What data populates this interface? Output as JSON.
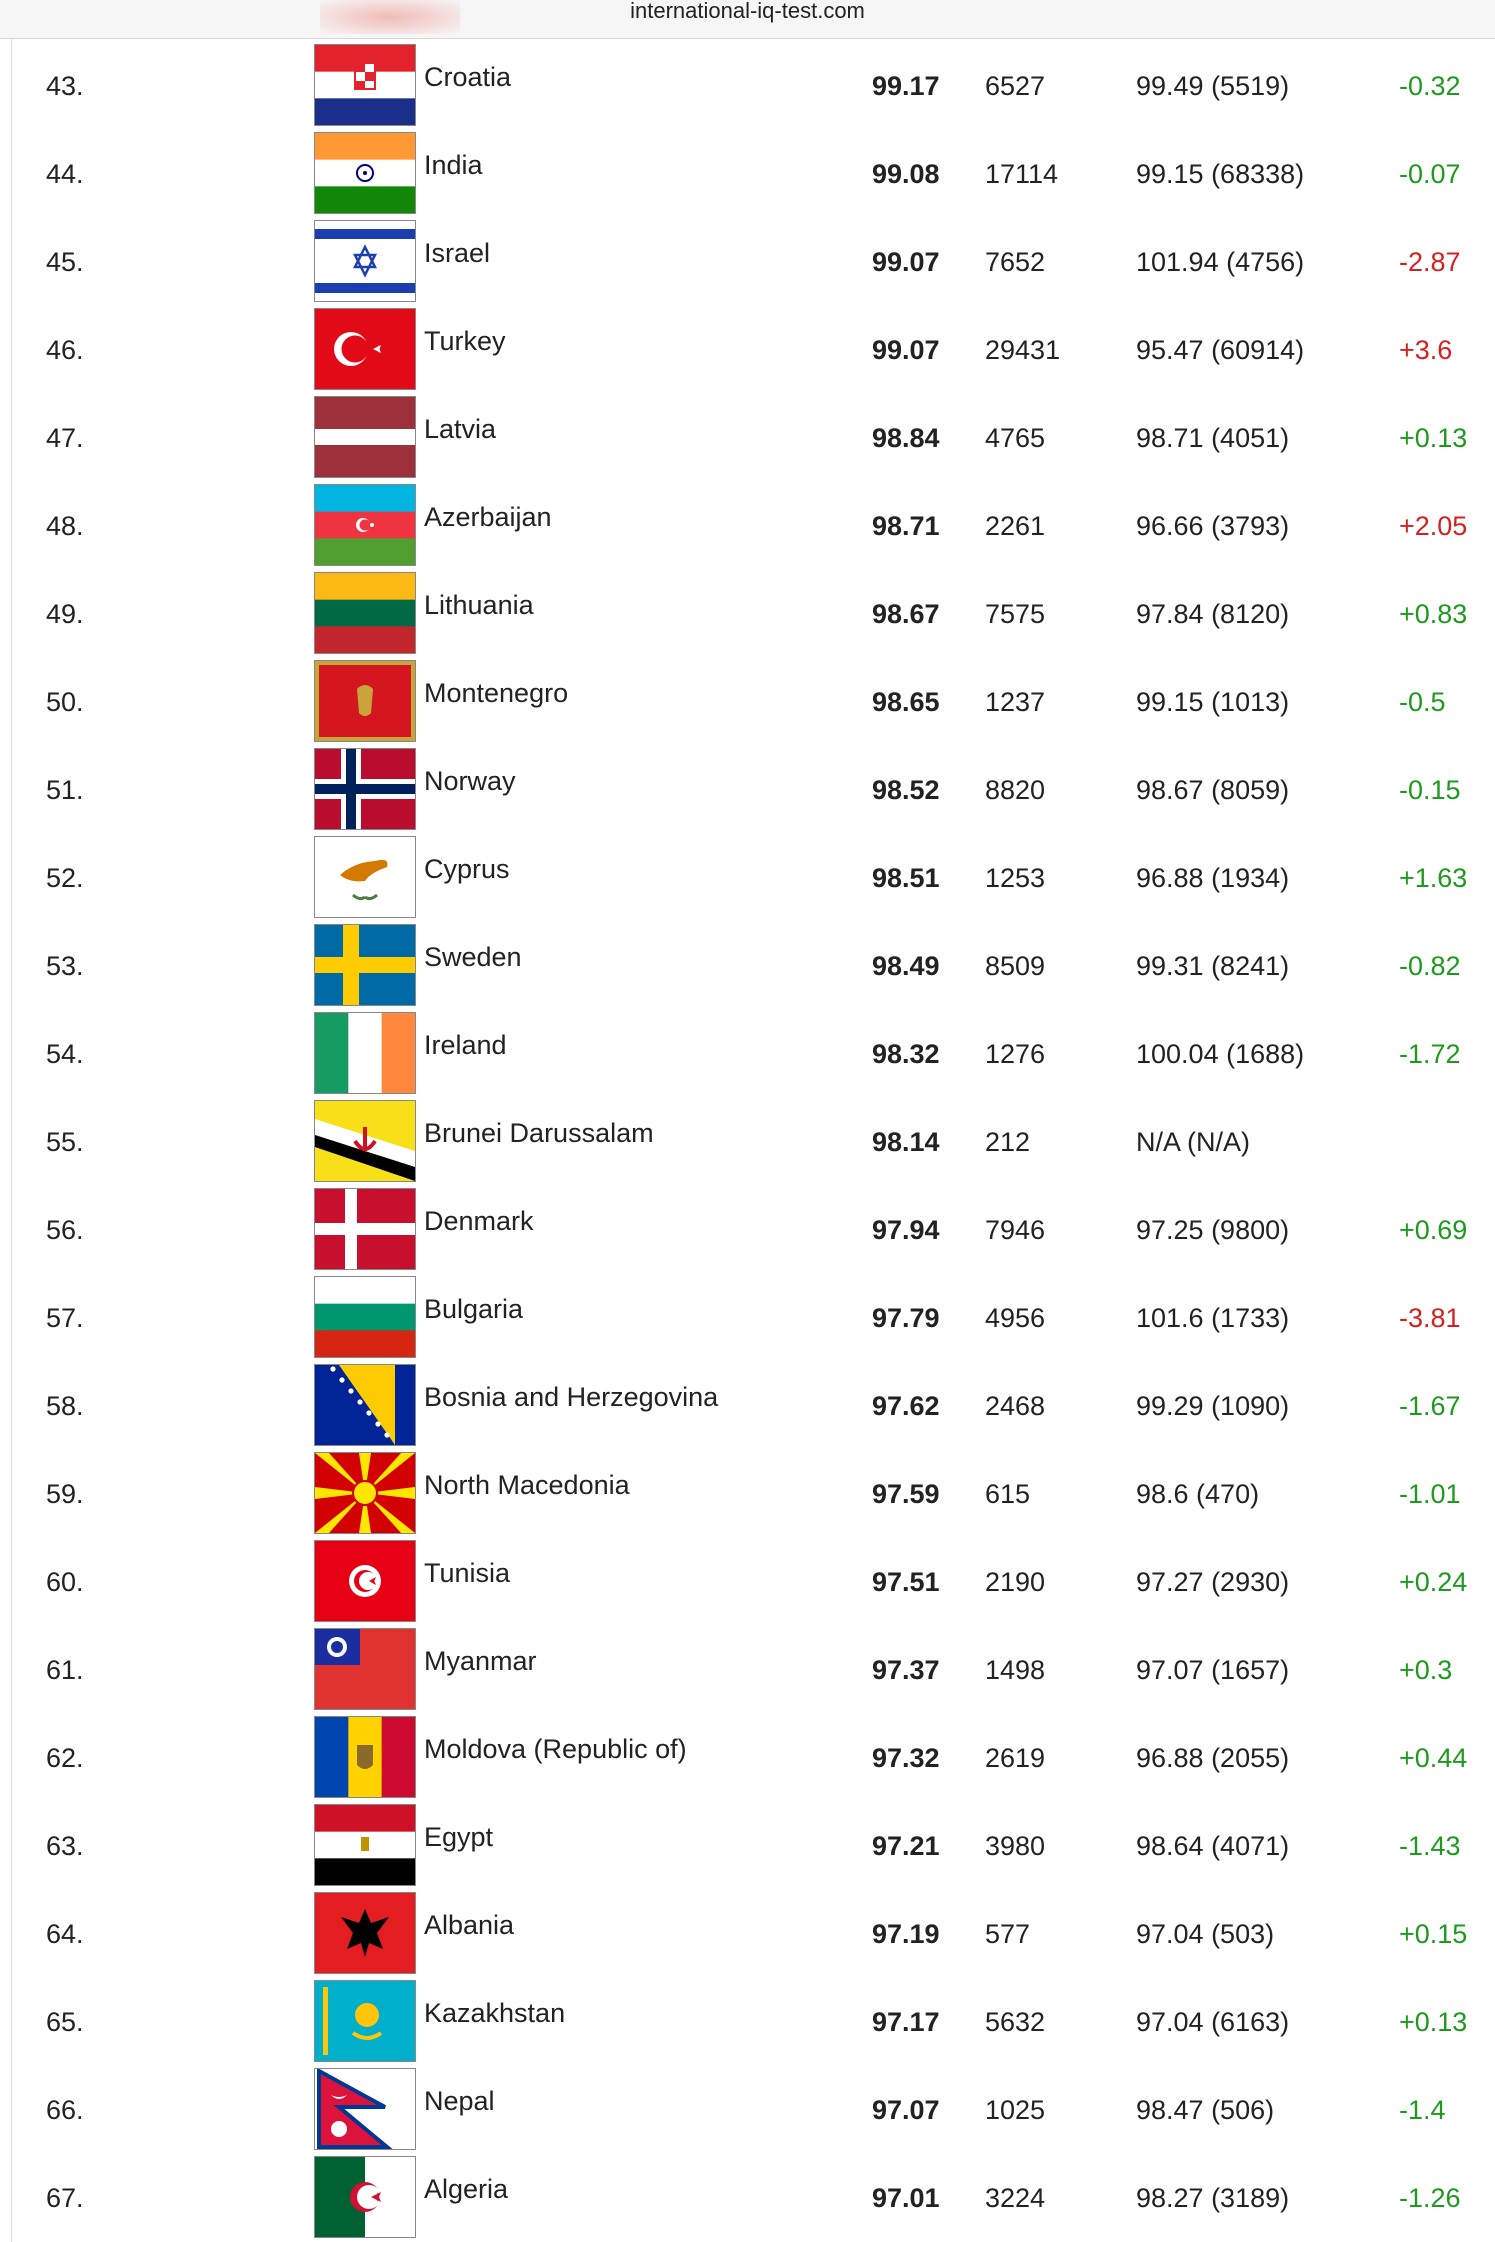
{
  "header": {
    "site": "international-iq-test.com"
  },
  "table": {
    "rows": [
      {
        "rank": "43.",
        "country": "Croatia",
        "score": 99.17,
        "count": 6527,
        "previous": "99.49 (5519)",
        "change": "-0.32",
        "change_color": "#1f9a1f"
      },
      {
        "rank": "44.",
        "country": "India",
        "score": 99.08,
        "count": 17114,
        "previous": "99.15 (68338)",
        "change": "-0.07",
        "change_color": "#1f9a1f"
      },
      {
        "rank": "45.",
        "country": "Israel",
        "score": 99.07,
        "count": 7652,
        "previous": "101.94 (4756)",
        "change": "-2.87",
        "change_color": "#d42020"
      },
      {
        "rank": "46.",
        "country": "Turkey",
        "score": 99.07,
        "count": 29431,
        "previous": "95.47 (60914)",
        "change": "+3.6",
        "change_color": "#d42020"
      },
      {
        "rank": "47.",
        "country": "Latvia",
        "score": 98.84,
        "count": 4765,
        "previous": "98.71 (4051)",
        "change": "+0.13",
        "change_color": "#1f9a1f"
      },
      {
        "rank": "48.",
        "country": "Azerbaijan",
        "score": 98.71,
        "count": 2261,
        "previous": "96.66 (3793)",
        "change": "+2.05",
        "change_color": "#d42020"
      },
      {
        "rank": "49.",
        "country": "Lithuania",
        "score": 98.67,
        "count": 7575,
        "previous": "97.84 (8120)",
        "change": "+0.83",
        "change_color": "#1f9a1f"
      },
      {
        "rank": "50.",
        "country": "Montenegro",
        "score": 98.65,
        "count": 1237,
        "previous": "99.15 (1013)",
        "change": "-0.5",
        "change_color": "#1f9a1f"
      },
      {
        "rank": "51.",
        "country": "Norway",
        "score": 98.52,
        "count": 8820,
        "previous": "98.67 (8059)",
        "change": "-0.15",
        "change_color": "#1f9a1f"
      },
      {
        "rank": "52.",
        "country": "Cyprus",
        "score": 98.51,
        "count": 1253,
        "previous": "96.88 (1934)",
        "change": "+1.63",
        "change_color": "#1f9a1f"
      },
      {
        "rank": "53.",
        "country": "Sweden",
        "score": 98.49,
        "count": 8509,
        "previous": "99.31 (8241)",
        "change": "-0.82",
        "change_color": "#1f9a1f"
      },
      {
        "rank": "54.",
        "country": "Ireland",
        "score": 98.32,
        "count": 1276,
        "previous": "100.04 (1688)",
        "change": "-1.72",
        "change_color": "#1f9a1f"
      },
      {
        "rank": "55.",
        "country": "Brunei Darussalam",
        "score": 98.14,
        "count": 212,
        "previous": "N/A (N/A)"
      },
      {
        "rank": "56.",
        "country": "Denmark",
        "score": 97.94,
        "count": 7946,
        "previous": "97.25 (9800)",
        "change": "+0.69",
        "change_color": "#1f9a1f"
      },
      {
        "rank": "57.",
        "country": "Bulgaria",
        "score": 97.79,
        "count": 4956,
        "previous": "101.6 (1733)",
        "change": "-3.81",
        "change_color": "#d42020"
      },
      {
        "rank": "58.",
        "country": "Bosnia and Herzegovina",
        "score": 97.62,
        "count": 2468,
        "previous": "99.29 (1090)",
        "change": "-1.67",
        "change_color": "#1f9a1f"
      },
      {
        "rank": "59.",
        "country": "North Macedonia",
        "score": 97.59,
        "count": 615,
        "previous": "98.6 (470)",
        "change": "-1.01",
        "change_color": "#1f9a1f"
      },
      {
        "rank": "60.",
        "country": "Tunisia",
        "score": 97.51,
        "count": 2190,
        "previous": "97.27 (2930)",
        "change": "+0.24",
        "change_color": "#1f9a1f"
      },
      {
        "rank": "61.",
        "country": "Myanmar",
        "score": 97.37,
        "count": 1498,
        "previous": "97.07 (1657)",
        "change": "+0.3",
        "change_color": "#1f9a1f"
      },
      {
        "rank": "62.",
        "country": "Moldova (Republic of)",
        "score": 97.32,
        "count": 2619,
        "previous": "96.88 (2055)",
        "change": "+0.44",
        "change_color": "#1f9a1f"
      },
      {
        "rank": "63.",
        "country": "Egypt",
        "score": 97.21,
        "count": 3980,
        "previous": "98.64 (4071)",
        "change": "-1.43",
        "change_color": "#1f9a1f"
      },
      {
        "rank": "64.",
        "country": "Albania",
        "score": 97.19,
        "count": 577,
        "previous": "97.04 (503)",
        "change": "+0.15",
        "change_color": "#1f9a1f"
      },
      {
        "rank": "65.",
        "country": "Kazakhstan",
        "score": 97.17,
        "count": 5632,
        "previous": "97.04 (6163)",
        "change": "+0.13",
        "change_color": "#1f9a1f"
      },
      {
        "rank": "66.",
        "country": "Nepal",
        "score": 97.07,
        "count": 1025,
        "previous": "98.47 (506)",
        "change": "-1.4",
        "change_color": "#1f9a1f"
      },
      {
        "rank": "67.",
        "country": "Algeria",
        "score": 97.01,
        "count": 3224,
        "previous": "98.27 (3189)",
        "change": "-1.26",
        "change_color": "#1f9a1f"
      }
    ]
  }
}
